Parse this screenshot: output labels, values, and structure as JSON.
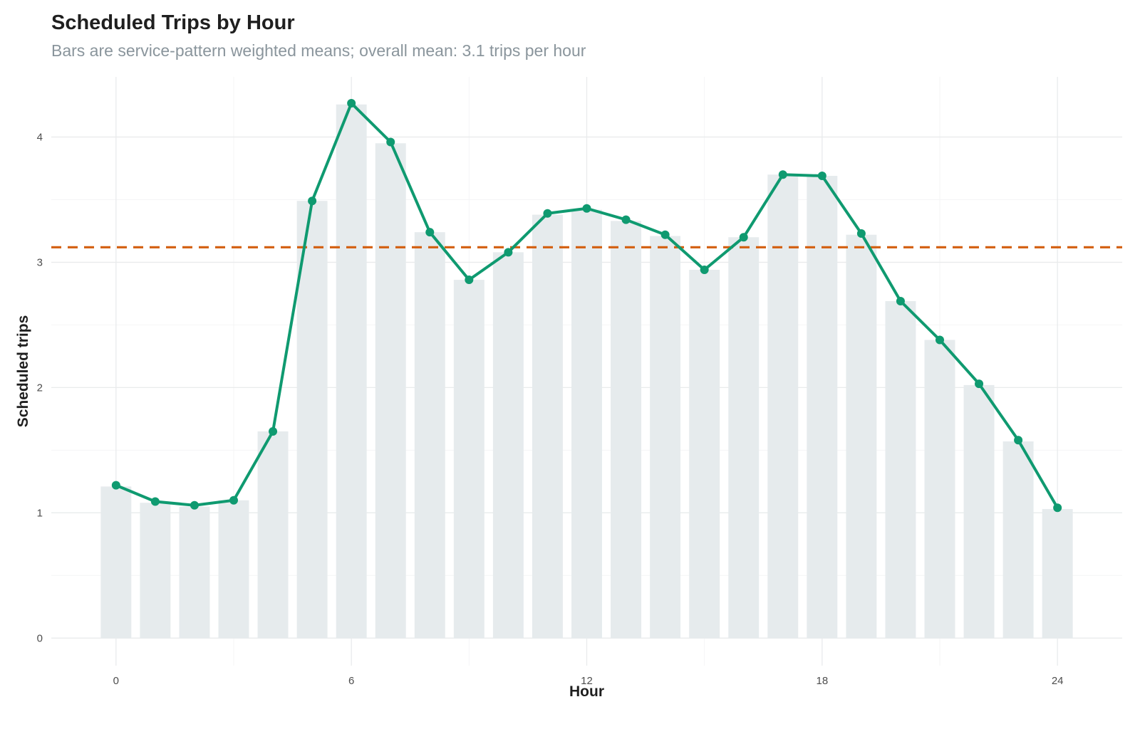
{
  "chart_data": {
    "type": "bar",
    "title": "Scheduled Trips by Hour",
    "subtitle": "Bars are service-pattern weighted means; overall mean: 3.1 trips per hour",
    "xlabel": "Hour",
    "ylabel": "Scheduled trips",
    "x": [
      0,
      1,
      2,
      3,
      4,
      5,
      6,
      7,
      8,
      9,
      10,
      11,
      12,
      13,
      14,
      15,
      16,
      17,
      18,
      19,
      20,
      21,
      22,
      23,
      24
    ],
    "xticks": [
      0,
      6,
      12,
      18,
      24
    ],
    "yticks": [
      0,
      1,
      2,
      3,
      4
    ],
    "xlim": [
      -1.65,
      25.65
    ],
    "ylim": [
      -0.22,
      4.48
    ],
    "grid": true,
    "legend": "none",
    "series": [
      {
        "kind": "bar",
        "values": [
          1.21,
          1.08,
          1.05,
          1.1,
          1.65,
          3.49,
          4.26,
          3.95,
          3.24,
          2.86,
          3.08,
          3.38,
          3.42,
          3.33,
          3.21,
          2.94,
          3.2,
          3.7,
          3.69,
          3.22,
          2.69,
          2.38,
          2.02,
          1.57,
          1.03
        ],
        "color": "#e6ebed"
      },
      {
        "kind": "line",
        "values": [
          1.22,
          1.09,
          1.06,
          1.1,
          1.65,
          3.49,
          4.27,
          3.96,
          3.24,
          2.86,
          3.08,
          3.39,
          3.43,
          3.34,
          3.22,
          2.94,
          3.2,
          3.7,
          3.69,
          3.23,
          2.69,
          2.38,
          2.03,
          1.58,
          1.04
        ],
        "color": "#0f9a70"
      }
    ],
    "reference_line": {
      "value": 3.12,
      "style": "dashed",
      "color": "#d35f0f"
    }
  }
}
